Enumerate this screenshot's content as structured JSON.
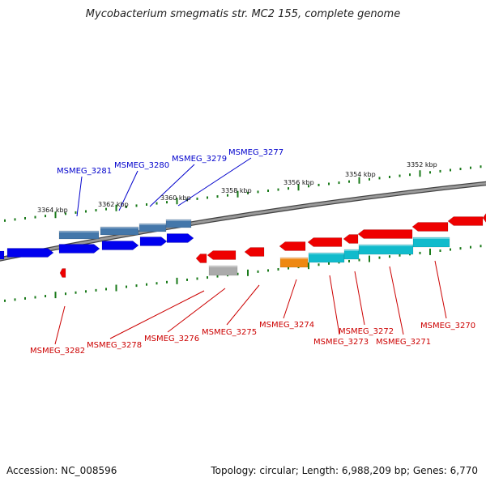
{
  "title": "Mycobacterium smegmatis str. MC2 155, complete genome",
  "footer": {
    "accession": "Accession: NC_008596",
    "summary": "Topology: circular; Length: 6,988,209 bp; Genes: 6,770"
  },
  "colors": {
    "backbone": "#777777",
    "tick": "#1a7a1a",
    "forward_gene": "#0000ee",
    "forward_cds": "#4477aa",
    "reverse_gene": "#ee0000",
    "reverse_cds_cyan": "#11bbcc",
    "reverse_cds_orange": "#ee8811",
    "pseudo_gray": "#aaaaaa",
    "forward_label": "#0000cc",
    "reverse_label": "#cc0000"
  },
  "scale_labels": [
    "3364 kbp",
    "3362 kbp",
    "3360 kbp",
    "3358 kbp",
    "3356 kbp",
    "3354 kbp",
    "3352 kbp"
  ],
  "forward_labels": [
    "MSMEG_3281",
    "MSMEG_3280",
    "MSMEG_3279",
    "MSMEG_3277"
  ],
  "reverse_labels": [
    "MSMEG_3282",
    "MSMEG_3278",
    "MSMEG_3276",
    "MSMEG_3275",
    "MSMEG_3274",
    "MSMEG_3273",
    "MSMEG_3272",
    "MSMEG_3271",
    "MSMEG_3270"
  ]
}
